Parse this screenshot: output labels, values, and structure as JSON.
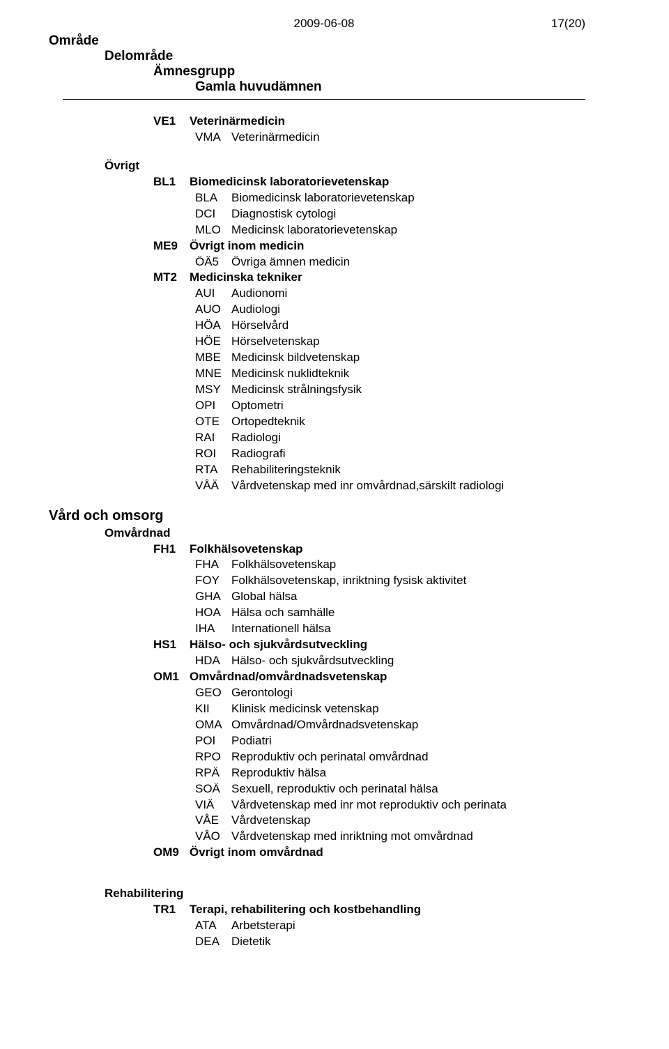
{
  "header": {
    "date": "2009-06-08",
    "page": "17(20)",
    "heading_omrade": "Område",
    "heading_delomrade": "Delområde",
    "heading_amnesgrupp": "Ämnesgrupp",
    "heading_gamla": "Gamla huvudämnen"
  },
  "top": {
    "ve1": {
      "code": "VE1",
      "label": "Veterinärmedicin"
    },
    "vma": {
      "code": "VMA",
      "label": "Veterinärmedicin"
    }
  },
  "ovrigt": {
    "label": "Övrigt",
    "bl1": {
      "code": "BL1",
      "label": "Biomedicinsk laboratorievetenskap"
    },
    "bl1_items": [
      {
        "code": "BLA",
        "label": "Biomedicinsk laboratorievetenskap"
      },
      {
        "code": "DCI",
        "label": "Diagnostisk cytologi"
      },
      {
        "code": "MLO",
        "label": "Medicinsk laboratorievetenskap"
      }
    ],
    "me9": {
      "code": "ME9",
      "label": "Övrigt inom medicin"
    },
    "me9_items": [
      {
        "code": "ÖÄ5",
        "label": "Övriga ämnen medicin"
      }
    ],
    "mt2": {
      "code": "MT2",
      "label": "Medicinska tekniker"
    },
    "mt2_items": [
      {
        "code": "AUI",
        "label": "Audionomi"
      },
      {
        "code": "AUO",
        "label": "Audiologi"
      },
      {
        "code": "HÖA",
        "label": "Hörselvård"
      },
      {
        "code": "HÖE",
        "label": "Hörselvetenskap"
      },
      {
        "code": "MBE",
        "label": "Medicinsk bildvetenskap"
      },
      {
        "code": "MNE",
        "label": "Medicinsk nuklidteknik"
      },
      {
        "code": "MSY",
        "label": "Medicinsk strålningsfysik"
      },
      {
        "code": "OPI",
        "label": "Optometri"
      },
      {
        "code": "OTE",
        "label": "Ortopedteknik"
      },
      {
        "code": "RAI",
        "label": "Radiologi"
      },
      {
        "code": "ROI",
        "label": "Radiografi"
      },
      {
        "code": "RTA",
        "label": "Rehabiliteringsteknik"
      },
      {
        "code": "VÅÄ",
        "label": "Vårdvetenskap med inr omvårdnad,särskilt radiologi"
      }
    ]
  },
  "vard": {
    "label": "Vård och omsorg",
    "sub_label": "Omvårdnad",
    "fh1": {
      "code": "FH1",
      "label": "Folkhälsovetenskap"
    },
    "fh1_items": [
      {
        "code": "FHA",
        "label": "Folkhälsovetenskap"
      },
      {
        "code": "FOY",
        "label": "Folkhälsovetenskap, inriktning fysisk aktivitet"
      },
      {
        "code": "GHA",
        "label": "Global hälsa"
      },
      {
        "code": "HOA",
        "label": "Hälsa och samhälle"
      },
      {
        "code": "IHA",
        "label": "Internationell hälsa"
      }
    ],
    "hs1": {
      "code": "HS1",
      "label": "Hälso- och sjukvårdsutveckling"
    },
    "hs1_items": [
      {
        "code": "HDA",
        "label": "Hälso- och sjukvårdsutveckling"
      }
    ],
    "om1": {
      "code": "OM1",
      "label": "Omvårdnad/omvårdnadsvetenskap"
    },
    "om1_items": [
      {
        "code": "GEO",
        "label": "Gerontologi"
      },
      {
        "code": "KII",
        "label": "Klinisk medicinsk vetenskap"
      },
      {
        "code": "OMA",
        "label": "Omvårdnad/Omvårdnadsvetenskap"
      },
      {
        "code": "POI",
        "label": "Podiatri"
      },
      {
        "code": "RPO",
        "label": "Reproduktiv och perinatal omvårdnad"
      },
      {
        "code": "RPÄ",
        "label": "Reproduktiv hälsa"
      },
      {
        "code": "SOÄ",
        "label": "Sexuell, reproduktiv och perinatal hälsa"
      },
      {
        "code": "VIÄ",
        "label": "Vårdvetenskap med inr mot reproduktiv och perinata"
      },
      {
        "code": "VÅE",
        "label": "Vårdvetenskap"
      },
      {
        "code": "VÅO",
        "label": "Vårdvetenskap med inriktning mot omvårdnad"
      }
    ],
    "om9": {
      "code": "OM9",
      "label": "Övrigt inom omvårdnad"
    }
  },
  "rehab": {
    "label": "Rehabilitering",
    "tr1": {
      "code": "TR1",
      "label": "Terapi, rehabilitering och kostbehandling"
    },
    "tr1_items": [
      {
        "code": "ATA",
        "label": "Arbetsterapi"
      },
      {
        "code": "DEA",
        "label": "Dietetik"
      }
    ]
  }
}
